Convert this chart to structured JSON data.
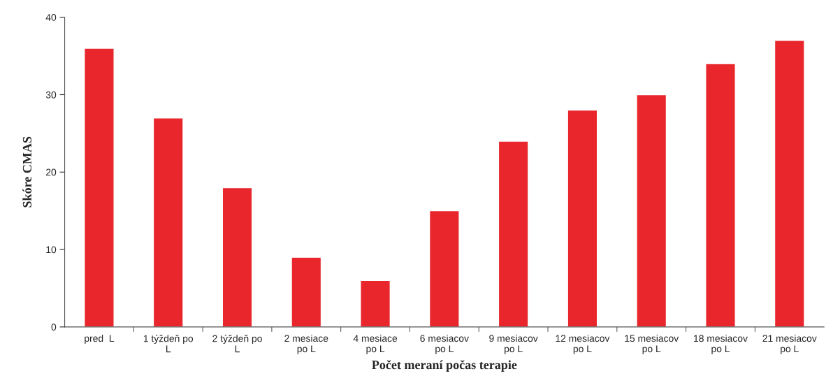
{
  "chart_data": {
    "type": "bar",
    "xlabel": "Počet meraní počas terapie",
    "ylabel": "Skóre CMAS",
    "categories": [
      "pred  L",
      "1 týždeň po\nL",
      "2 týždeň po\nL",
      "2 mesiace\npo L",
      "4 mesiace\npo L",
      "6 mesiacov\npo L",
      "9 mesiacov\npo L",
      "12 mesiacov\npo L",
      "15 mesiacov\npo L",
      "18 mesiacov\npo L",
      "21 mesiacov\npo L"
    ],
    "values": [
      36,
      27,
      18,
      9,
      6,
      15,
      24,
      28,
      30,
      34,
      37
    ],
    "color": "#e8262b",
    "ylim": [
      0,
      40
    ],
    "yticks": [
      0,
      10,
      20,
      30,
      40
    ],
    "grid": false
  }
}
